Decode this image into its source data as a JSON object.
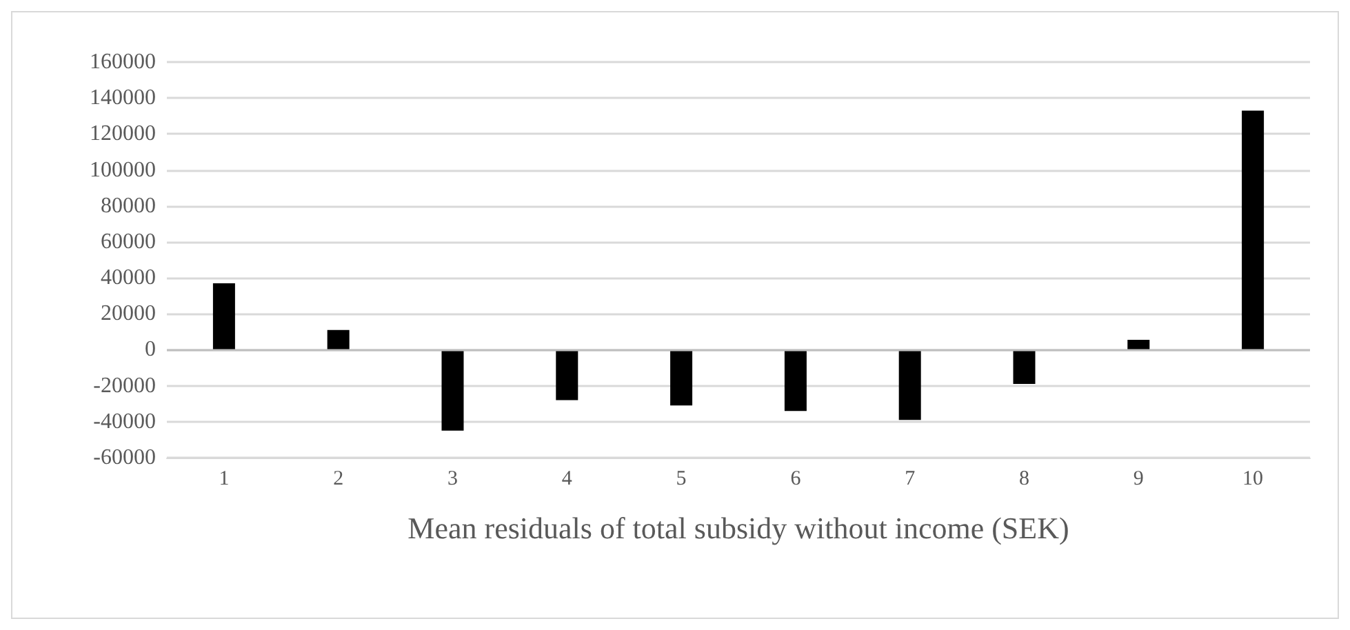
{
  "chart_data": {
    "type": "bar",
    "xlabel": "Mean residuals of total subsidy without income (SEK)",
    "categories": [
      "1",
      "2",
      "3",
      "4",
      "5",
      "6",
      "7",
      "8",
      "9",
      "10"
    ],
    "values": [
      37000,
      11000,
      -45000,
      -28000,
      -31000,
      -34000,
      -39000,
      -19000,
      5500,
      133000
    ],
    "color": "#000000",
    "ylim": [
      -60000,
      160000
    ],
    "yticks": [
      -60000,
      -40000,
      -20000,
      0,
      20000,
      40000,
      60000,
      80000,
      100000,
      120000,
      140000,
      160000
    ],
    "grid": true
  }
}
